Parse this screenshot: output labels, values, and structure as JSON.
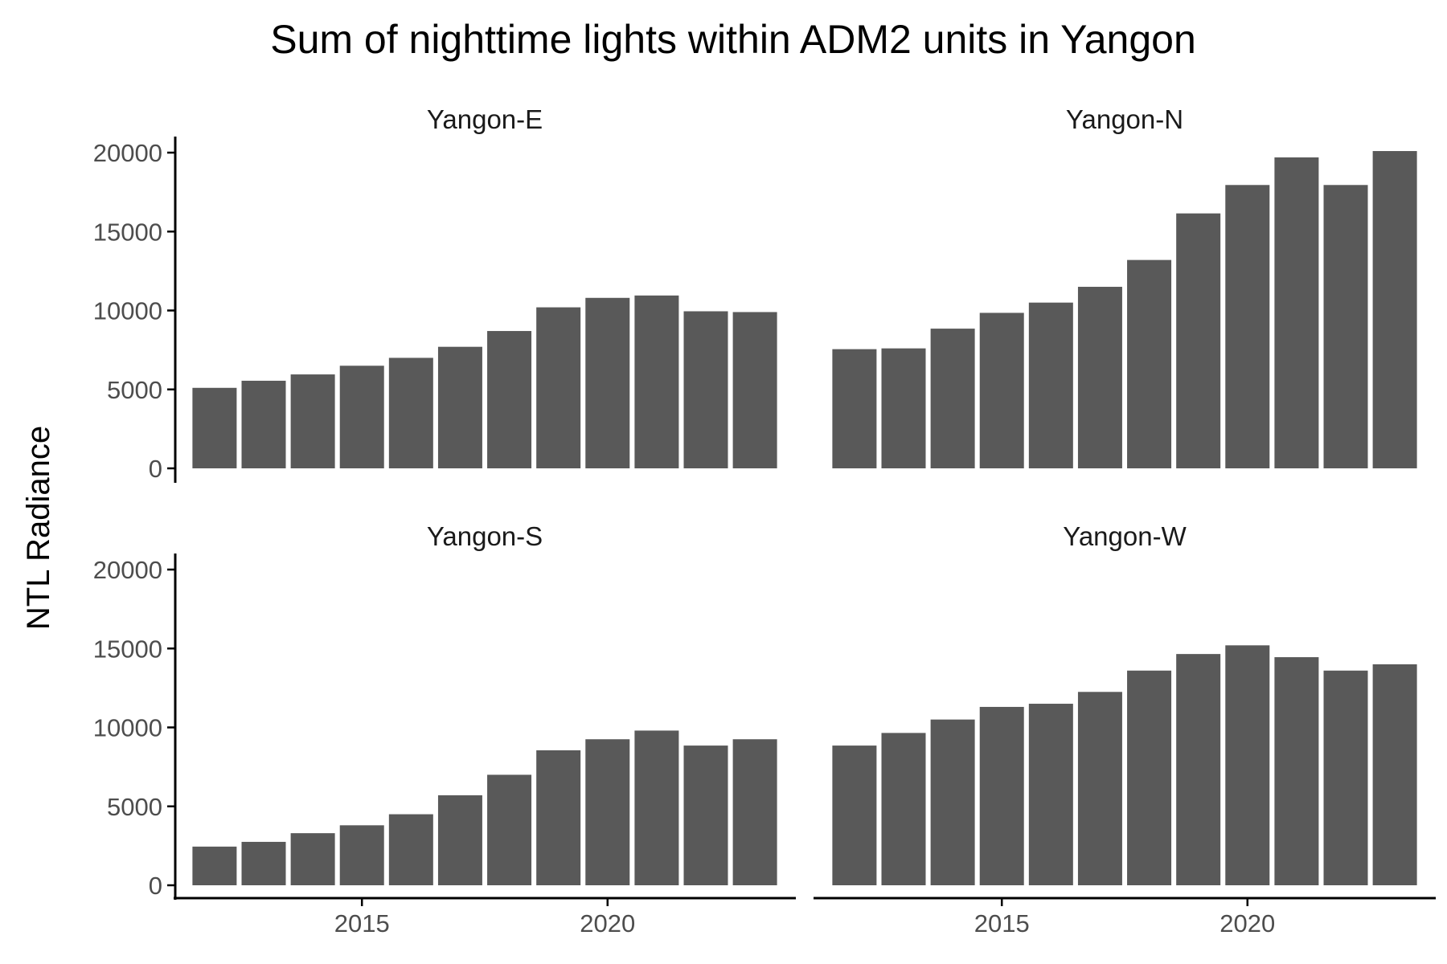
{
  "chart_data": {
    "type": "bar",
    "title": "Sum of nighttime lights within ADM2 units in Yangon",
    "xlabel": "",
    "ylabel": "NTL Radiance",
    "x": [
      2012,
      2013,
      2014,
      2015,
      2016,
      2017,
      2018,
      2019,
      2020,
      2021,
      2022,
      2023
    ],
    "xlim": [
      2011.2,
      2023.8
    ],
    "ylim": [
      0,
      20000
    ],
    "x_ticks": [
      2015,
      2020
    ],
    "y_ticks": [
      0,
      5000,
      10000,
      15000,
      20000
    ],
    "grid": false,
    "facet_layout": "2x2",
    "bar_color": "#595959",
    "panels": [
      {
        "name": "Yangon-E",
        "values": [
          5100,
          5550,
          5950,
          6500,
          7000,
          7700,
          8700,
          10200,
          10800,
          10950,
          9950,
          9900
        ]
      },
      {
        "name": "Yangon-N",
        "values": [
          7550,
          7600,
          8850,
          9850,
          10500,
          11500,
          13200,
          16150,
          17950,
          19700,
          17950,
          20100
        ]
      },
      {
        "name": "Yangon-S",
        "values": [
          2450,
          2750,
          3300,
          3800,
          4500,
          5700,
          7000,
          8550,
          9250,
          9800,
          8850,
          9250
        ]
      },
      {
        "name": "Yangon-W",
        "values": [
          8850,
          9650,
          10500,
          11300,
          11500,
          12250,
          13600,
          14650,
          15200,
          14450,
          13600,
          14000
        ]
      }
    ]
  }
}
